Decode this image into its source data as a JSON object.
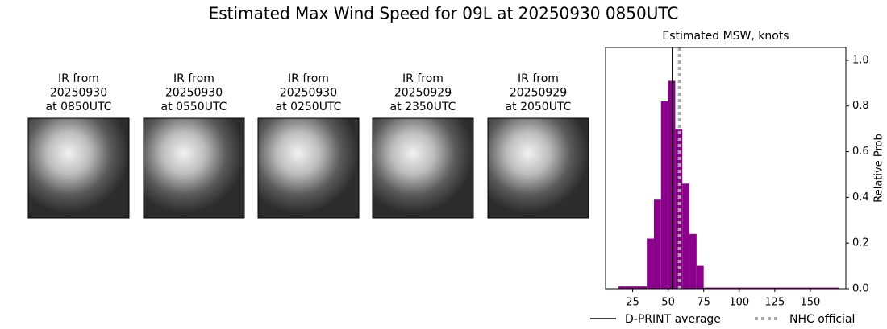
{
  "title": "Estimated Max Wind Speed for 09L at 20250930 0850UTC",
  "panels": [
    {
      "lines": [
        "IR from",
        "20250930",
        "at 0850UTC"
      ]
    },
    {
      "lines": [
        "IR from",
        "20250930",
        "at 0550UTC"
      ]
    },
    {
      "lines": [
        "IR from",
        "20250930",
        "at 0250UTC"
      ]
    },
    {
      "lines": [
        "IR from",
        "20250929",
        "at 2350UTC"
      ]
    },
    {
      "lines": [
        "IR from",
        "20250929",
        "at 2050UTC"
      ]
    }
  ],
  "chart_data": {
    "type": "histogram",
    "title": "Estimated MSW, knots",
    "bins": [
      15,
      20,
      25,
      30,
      35,
      40,
      45,
      50,
      55,
      60,
      65,
      70,
      75,
      170
    ],
    "values": [
      0.01,
      0.01,
      0.01,
      0.01,
      0.22,
      0.39,
      0.82,
      0.91,
      0.7,
      0.46,
      0.24,
      0.1,
      0.005
    ],
    "color": "#8b008b",
    "xlim": [
      6,
      175
    ],
    "xticks": [
      25,
      50,
      75,
      100,
      125,
      150
    ],
    "ylim": [
      0,
      1.056
    ],
    "yticks": [
      {
        "value": 0,
        "label": "0.0"
      },
      0.2,
      0.4,
      0.6,
      0.8,
      {
        "value": 1,
        "label": "1.0"
      }
    ],
    "y_label": "Relative Prob",
    "y_axis_side": "right",
    "lines": [
      {
        "name": "D-PRINT average",
        "x": 53,
        "color": "#000000",
        "style": "solid"
      },
      {
        "name": "NHC official",
        "x": 58,
        "color": "#aaaaaa",
        "style": "dotted"
      }
    ]
  }
}
